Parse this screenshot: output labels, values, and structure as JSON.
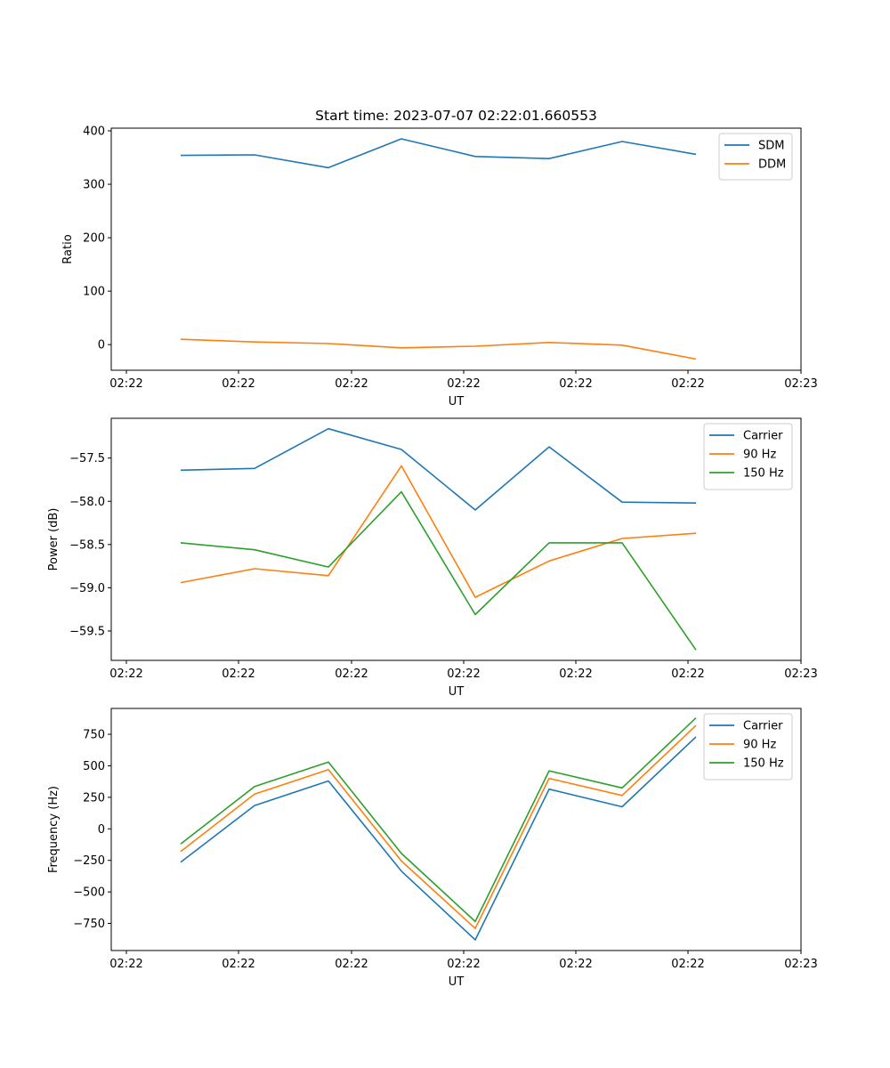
{
  "chart_data": [
    {
      "type": "line",
      "title": "Start time: 2023-07-07 02:22:01.660553",
      "xlabel": "UT",
      "ylabel": "Ratio",
      "x_ticks": [
        "02:22",
        "02:22",
        "02:22",
        "02:22",
        "02:22",
        "02:22",
        "02:23"
      ],
      "ylim": [
        -48,
        405
      ],
      "y_ticks": [
        0,
        100,
        200,
        300,
        400
      ],
      "legend": "top-right",
      "colors": [
        "#1f77b4",
        "#ff7f0e"
      ],
      "series": [
        {
          "name": "SDM",
          "values": [
            354,
            355,
            331,
            385,
            352,
            348,
            380,
            356
          ]
        },
        {
          "name": "DDM",
          "values": [
            10,
            5,
            2,
            -6,
            -3,
            4,
            -1,
            -27
          ]
        }
      ]
    },
    {
      "type": "line",
      "title": "",
      "xlabel": "UT",
      "ylabel": "Power (dB)",
      "x_ticks": [
        "02:22",
        "02:22",
        "02:22",
        "02:22",
        "02:22",
        "02:22",
        "02:23"
      ],
      "ylim": [
        -59.84,
        -57.04
      ],
      "y_ticks": [
        -57.5,
        -58.0,
        -58.5,
        -59.0,
        -59.5
      ],
      "y_tick_labels": [
        "−57.5",
        "−58.0",
        "−58.5",
        "−59.0",
        "−59.5"
      ],
      "legend": "top-right",
      "colors": [
        "#1f77b4",
        "#ff7f0e",
        "#2ca02c"
      ],
      "series": [
        {
          "name": "Carrier",
          "values": [
            -57.64,
            -57.62,
            -57.16,
            -57.4,
            -58.1,
            -57.37,
            -58.01,
            -58.02
          ]
        },
        {
          "name": "90 Hz",
          "values": [
            -58.94,
            -58.78,
            -58.86,
            -57.59,
            -59.11,
            -58.69,
            -58.43,
            -58.37
          ]
        },
        {
          "name": "150 Hz",
          "values": [
            -58.48,
            -58.56,
            -58.76,
            -57.89,
            -59.31,
            -58.48,
            -58.48,
            -59.72
          ]
        }
      ]
    },
    {
      "type": "line",
      "title": "",
      "xlabel": "UT",
      "ylabel": "Frequency (Hz)",
      "x_ticks": [
        "02:22",
        "02:22",
        "02:22",
        "02:22",
        "02:22",
        "02:22",
        "02:23"
      ],
      "ylim": [
        -965,
        955
      ],
      "y_ticks": [
        750,
        500,
        250,
        0,
        -250,
        -500,
        -750
      ],
      "y_tick_labels": [
        "750",
        "500",
        "250",
        "0",
        "−250",
        "−500",
        "−750"
      ],
      "legend": "top-right",
      "colors": [
        "#1f77b4",
        "#ff7f0e",
        "#2ca02c"
      ],
      "series": [
        {
          "name": "Carrier",
          "values": [
            -265,
            185,
            380,
            -335,
            -880,
            315,
            175,
            730
          ]
        },
        {
          "name": "90 Hz",
          "values": [
            -180,
            275,
            470,
            -255,
            -790,
            400,
            265,
            820
          ]
        },
        {
          "name": "150 Hz",
          "values": [
            -120,
            335,
            530,
            -195,
            -735,
            460,
            325,
            880
          ]
        }
      ]
    }
  ]
}
